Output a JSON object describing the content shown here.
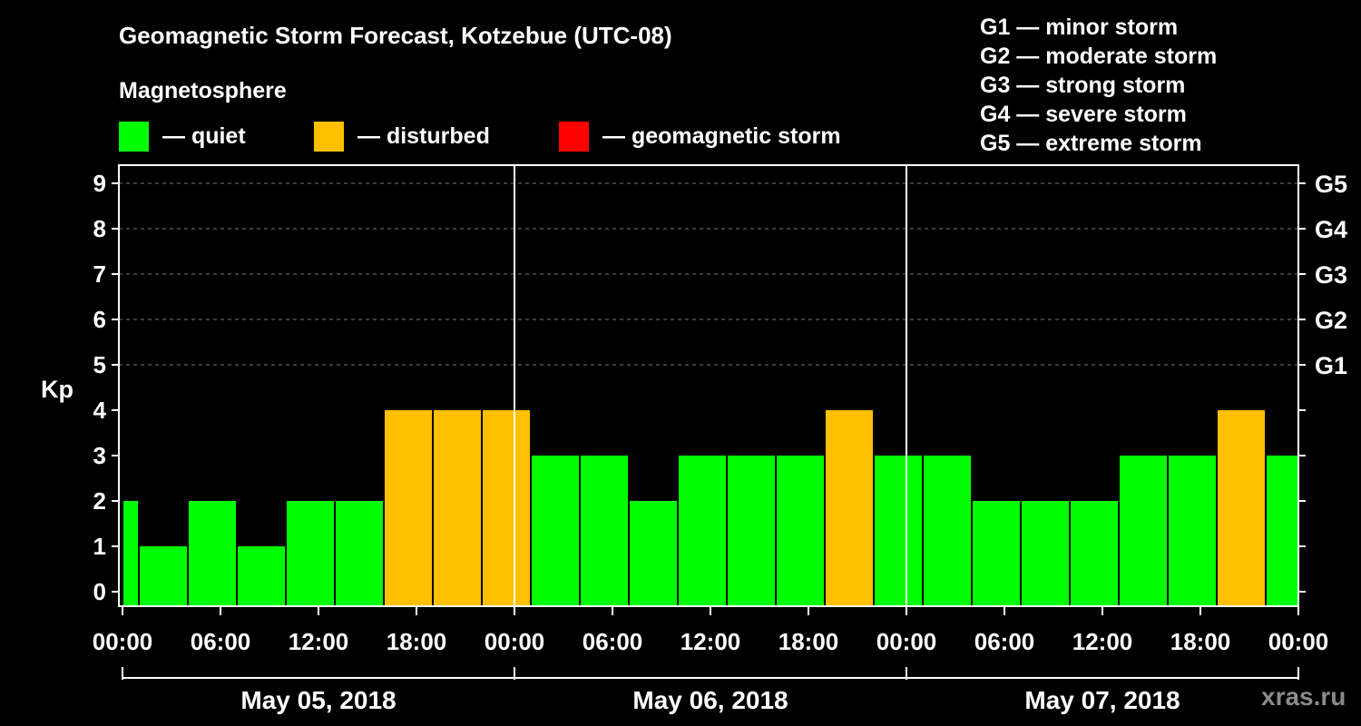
{
  "title": "Geomagnetic Storm Forecast, Kotzebue (UTC-08)",
  "subtitle": "Magnetosphere",
  "legend": [
    {
      "label": "— quiet",
      "color": "#00ff00",
      "icon": "green-square"
    },
    {
      "label": "— disturbed",
      "color": "#ffc000",
      "icon": "orange-square"
    },
    {
      "label": "— geomagnetic storm",
      "color": "#ff0000",
      "icon": "red-square"
    }
  ],
  "storm_scale": [
    "G1 — minor storm",
    "G2 — moderate storm",
    "G3 — strong storm",
    "G4 — severe storm",
    "G5 — extreme storm"
  ],
  "watermark": "xras.ru",
  "chart_data": {
    "type": "bar",
    "title": "Geomagnetic Storm Forecast, Kotzebue (UTC-08)",
    "ylabel": "Kp",
    "ylim": [
      0,
      9
    ],
    "yticks": [
      "0",
      "1",
      "2",
      "3",
      "4",
      "5",
      "6",
      "7",
      "8",
      "9"
    ],
    "right_ticks": [
      {
        "value": 5,
        "label": "G1"
      },
      {
        "value": 6,
        "label": "G2"
      },
      {
        "value": 7,
        "label": "G3"
      },
      {
        "value": 8,
        "label": "G4"
      },
      {
        "value": 9,
        "label": "G5"
      }
    ],
    "xlim_hours": [
      0,
      72
    ],
    "xticks": [
      "00:00",
      "06:00",
      "12:00",
      "18:00",
      "00:00",
      "06:00",
      "12:00",
      "18:00",
      "00:00",
      "06:00",
      "12:00",
      "18:00",
      "00:00"
    ],
    "dates": [
      "May 05, 2018",
      "May 06, 2018",
      "May 07, 2018"
    ],
    "grid": "dashed horizontal at Kp 5–9",
    "bar_width_hours": 3,
    "status_colors": {
      "quiet": "#00ff00",
      "disturbed": "#ffc000",
      "storm": "#ff0000"
    },
    "bars": [
      {
        "start": 0,
        "end": 1,
        "kp": 2,
        "status": "quiet"
      },
      {
        "start": 1,
        "end": 4,
        "kp": 1,
        "status": "quiet"
      },
      {
        "start": 4,
        "end": 7,
        "kp": 2,
        "status": "quiet"
      },
      {
        "start": 7,
        "end": 10,
        "kp": 1,
        "status": "quiet"
      },
      {
        "start": 10,
        "end": 13,
        "kp": 2,
        "status": "quiet"
      },
      {
        "start": 13,
        "end": 16,
        "kp": 2,
        "status": "quiet"
      },
      {
        "start": 16,
        "end": 19,
        "kp": 4,
        "status": "disturbed"
      },
      {
        "start": 19,
        "end": 22,
        "kp": 4,
        "status": "disturbed"
      },
      {
        "start": 22,
        "end": 25,
        "kp": 4,
        "status": "disturbed"
      },
      {
        "start": 25,
        "end": 28,
        "kp": 3,
        "status": "quiet"
      },
      {
        "start": 28,
        "end": 31,
        "kp": 3,
        "status": "quiet"
      },
      {
        "start": 31,
        "end": 34,
        "kp": 2,
        "status": "quiet"
      },
      {
        "start": 34,
        "end": 37,
        "kp": 3,
        "status": "quiet"
      },
      {
        "start": 37,
        "end": 40,
        "kp": 3,
        "status": "quiet"
      },
      {
        "start": 40,
        "end": 43,
        "kp": 3,
        "status": "quiet"
      },
      {
        "start": 43,
        "end": 46,
        "kp": 4,
        "status": "disturbed"
      },
      {
        "start": 46,
        "end": 49,
        "kp": 3,
        "status": "quiet"
      },
      {
        "start": 49,
        "end": 52,
        "kp": 3,
        "status": "quiet"
      },
      {
        "start": 52,
        "end": 55,
        "kp": 2,
        "status": "quiet"
      },
      {
        "start": 55,
        "end": 58,
        "kp": 2,
        "status": "quiet"
      },
      {
        "start": 58,
        "end": 61,
        "kp": 2,
        "status": "quiet"
      },
      {
        "start": 61,
        "end": 64,
        "kp": 3,
        "status": "quiet"
      },
      {
        "start": 64,
        "end": 67,
        "kp": 3,
        "status": "quiet"
      },
      {
        "start": 67,
        "end": 70,
        "kp": 4,
        "status": "disturbed"
      },
      {
        "start": 70,
        "end": 72,
        "kp": 3,
        "status": "quiet"
      }
    ]
  }
}
